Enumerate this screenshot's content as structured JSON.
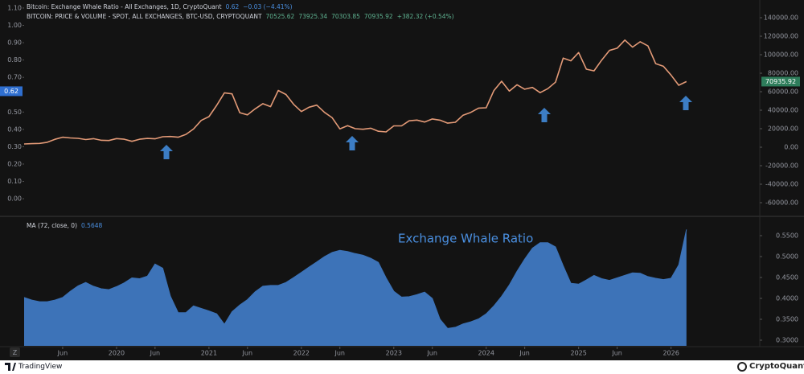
{
  "chart_data": [
    {
      "type": "line",
      "indicator": {
        "name": "Bitcoin: Exchange Whale Ratio - All Exchanges, 1D, CryptoQuant",
        "last": 0.62,
        "change": "−0.03 (−4.41%)"
      },
      "ohlc": {
        "open": 70525.62,
        "high": 73925.34,
        "low": 70303.85,
        "change": "+382.32 (+0.54%)"
      },
      "x": [
        "2019-01",
        "2019-02",
        "2019-03",
        "2019-04",
        "2019-05",
        "2019-06",
        "2019-07",
        "2019-08",
        "2019-09",
        "2019-10",
        "2019-11",
        "2019-12",
        "2020-01",
        "2020-02",
        "2020-03",
        "2020-04",
        "2020-05",
        "2020-06",
        "2020-07",
        "2020-08",
        "2020-09",
        "2020-10",
        "2020-11",
        "2020-12",
        "2021-01",
        "2021-02",
        "2021-03",
        "2021-04",
        "2021-05",
        "2021-06",
        "2021-07",
        "2021-08",
        "2021-09",
        "2021-10",
        "2021-11",
        "2021-12",
        "2022-01",
        "2022-02",
        "2022-03",
        "2022-04",
        "2022-05",
        "2022-06",
        "2022-07",
        "2022-08",
        "2022-09",
        "2022-10",
        "2022-11",
        "2022-12",
        "2023-01",
        "2023-02",
        "2023-03",
        "2023-04",
        "2023-05",
        "2023-06",
        "2023-07",
        "2023-08",
        "2023-09",
        "2023-10",
        "2023-11",
        "2023-12",
        "2024-01",
        "2024-02",
        "2024-03",
        "2024-04",
        "2024-05",
        "2024-06",
        "2024-07",
        "2024-08",
        "2024-09",
        "2024-10",
        "2024-11",
        "2024-12",
        "2025-01",
        "2025-02",
        "2025-03",
        "2025-04",
        "2025-05",
        "2025-06",
        "2025-07",
        "2025-08",
        "2025-09",
        "2025-10",
        "2025-11",
        "2025-12",
        "2026-01",
        "2026-02",
        "2026-03"
      ],
      "xlim": [
        "2019-01",
        "2026-12"
      ],
      "y_axis_side": "left",
      "ylim": [
        -0.097,
        1.123
      ],
      "yticks": [
        {
          "value": 1.1,
          "label": "1.10"
        },
        {
          "value": 1.0,
          "label": "1.00"
        },
        {
          "value": 0.9,
          "label": "0.90"
        },
        {
          "value": 0.8,
          "label": "0.80"
        },
        {
          "value": 0.7,
          "label": "0.70"
        },
        {
          "value": 0.5,
          "label": "0.50"
        },
        {
          "value": 0.4,
          "label": "0.40"
        },
        {
          "value": 0.3,
          "label": "0.30"
        },
        {
          "value": 0.2,
          "label": "0.20"
        },
        {
          "value": 0.1,
          "label": "0.10"
        },
        {
          "value": 0,
          "label": "0.00"
        }
      ],
      "y2lim": [
        -73900,
        154800
      ],
      "y2ticks": [
        {
          "value": 140000,
          "label": "140000.00"
        },
        {
          "value": 120000,
          "label": "120000.00"
        },
        {
          "value": 100000,
          "label": "100000.00"
        },
        {
          "value": 80000,
          "label": "80000.00"
        },
        {
          "value": 60000,
          "label": "60000.00"
        },
        {
          "value": 40000,
          "label": "40000.00"
        },
        {
          "value": 20000,
          "label": "20000.00"
        },
        {
          "value": 0,
          "label": "0.00"
        },
        {
          "value": -20000,
          "label": "-20000.00"
        },
        {
          "value": -40000,
          "label": "-40000.00"
        },
        {
          "value": -60000,
          "label": "-60000.00"
        }
      ],
      "series": [
        {
          "name": "BITCOIN: PRICE & VOLUME - SPOT, ALL EXCHANGES, BTC-USD, CRYPTOQUANT",
          "color": "#e39a77",
          "axis": "y2",
          "values": [
            3500,
            3800,
            4100,
            5300,
            8500,
            10800,
            10000,
            9600,
            8300,
            9200,
            7500,
            7200,
            9300,
            8600,
            6400,
            8600,
            9500,
            9100,
            11300,
            11600,
            10800,
            13800,
            19700,
            29000,
            33100,
            45200,
            58800,
            57700,
            37300,
            35000,
            41500,
            47100,
            43800,
            61300,
            57000,
            46300,
            38500,
            43200,
            45500,
            37700,
            31800,
            19800,
            23300,
            20000,
            19400,
            20500,
            17200,
            16500,
            23100,
            23100,
            28500,
            29300,
            27200,
            30500,
            29200,
            26000,
            27000,
            34600,
            37700,
            42300,
            42600,
            61200,
            71300,
            60600,
            67500,
            62700,
            64600,
            59000,
            63300,
            70300,
            96400,
            93400,
            102400,
            84400,
            82500,
            94200,
            104600,
            107100,
            115800,
            108200,
            114000,
            109500,
            90400,
            87500,
            78000,
            67000,
            70935.92
          ]
        }
      ]
    },
    {
      "type": "area",
      "annotation": "Exchange Whale Ratio",
      "x": [
        "2019-01",
        "2019-02",
        "2019-03",
        "2019-04",
        "2019-05",
        "2019-06",
        "2019-07",
        "2019-08",
        "2019-09",
        "2019-10",
        "2019-11",
        "2019-12",
        "2020-01",
        "2020-02",
        "2020-03",
        "2020-04",
        "2020-05",
        "2020-06",
        "2020-07",
        "2020-08",
        "2020-09",
        "2020-10",
        "2020-11",
        "2020-12",
        "2021-01",
        "2021-02",
        "2021-03",
        "2021-04",
        "2021-05",
        "2021-06",
        "2021-07",
        "2021-08",
        "2021-09",
        "2021-10",
        "2021-11",
        "2021-12",
        "2022-01",
        "2022-02",
        "2022-03",
        "2022-04",
        "2022-05",
        "2022-06",
        "2022-07",
        "2022-08",
        "2022-09",
        "2022-10",
        "2022-11",
        "2022-12",
        "2023-01",
        "2023-02",
        "2023-03",
        "2023-04",
        "2023-05",
        "2023-06",
        "2023-07",
        "2023-08",
        "2023-09",
        "2023-10",
        "2023-11",
        "2023-12",
        "2024-01",
        "2024-02",
        "2024-03",
        "2024-04",
        "2024-05",
        "2024-06",
        "2024-07",
        "2024-08",
        "2024-09",
        "2024-10",
        "2024-11",
        "2024-12",
        "2025-01",
        "2025-02",
        "2025-03",
        "2025-04",
        "2025-05",
        "2025-06",
        "2025-07",
        "2025-08",
        "2025-09",
        "2025-10",
        "2025-11",
        "2025-12",
        "2026-01",
        "2026-02",
        "2026-03"
      ],
      "xlim": [
        "2019-01",
        "2026-12"
      ],
      "xticks": [
        {
          "value": "2019-06",
          "label": "Jun"
        },
        {
          "value": "2020-01",
          "label": "2020"
        },
        {
          "value": "2020-06",
          "label": "Jun"
        },
        {
          "value": "2021-01",
          "label": "2021"
        },
        {
          "value": "2021-06",
          "label": "Jun"
        },
        {
          "value": "2022-01",
          "label": "2022"
        },
        {
          "value": "2022-06",
          "label": "Jun"
        },
        {
          "value": "2023-01",
          "label": "2023"
        },
        {
          "value": "2023-06",
          "label": "Jun"
        },
        {
          "value": "2024-01",
          "label": "2024"
        },
        {
          "value": "2024-06",
          "label": "Jun"
        },
        {
          "value": "2025-01",
          "label": "2025"
        },
        {
          "value": "2025-06",
          "label": "Jun"
        },
        {
          "value": "2026-01",
          "label": "2026"
        }
      ],
      "y_axis_side": "right",
      "ylim": [
        0.2865,
        0.5942
      ],
      "yticks": [
        {
          "value": 0.55,
          "label": "0.5500"
        },
        {
          "value": 0.5,
          "label": "0.5000"
        },
        {
          "value": 0.45,
          "label": "0.4500"
        },
        {
          "value": 0.4,
          "label": "0.4000"
        },
        {
          "value": 0.35,
          "label": "0.3500"
        },
        {
          "value": 0.3,
          "label": "0.3000"
        }
      ],
      "series": [
        {
          "name": "MA (72, close, 0)",
          "color": "#3d73b8",
          "values": [
            0.402,
            0.396,
            0.392,
            0.392,
            0.396,
            0.402,
            0.417,
            0.43,
            0.438,
            0.429,
            0.423,
            0.421,
            0.428,
            0.437,
            0.449,
            0.447,
            0.453,
            0.482,
            0.472,
            0.405,
            0.366,
            0.366,
            0.382,
            0.376,
            0.37,
            0.363,
            0.338,
            0.368,
            0.384,
            0.397,
            0.416,
            0.429,
            0.431,
            0.431,
            0.438,
            0.45,
            0.462,
            0.475,
            0.487,
            0.5,
            0.51,
            0.515,
            0.512,
            0.507,
            0.503,
            0.496,
            0.486,
            0.449,
            0.417,
            0.403,
            0.404,
            0.409,
            0.415,
            0.4,
            0.35,
            0.328,
            0.331,
            0.339,
            0.344,
            0.351,
            0.363,
            0.382,
            0.405,
            0.432,
            0.465,
            0.494,
            0.52,
            0.533,
            0.533,
            0.523,
            0.478,
            0.436,
            0.434,
            0.444,
            0.455,
            0.447,
            0.443,
            0.449,
            0.455,
            0.461,
            0.46,
            0.452,
            0.448,
            0.445,
            0.448,
            0.48,
            0.5648
          ]
        }
      ]
    }
  ],
  "corner_button": "Z",
  "footer": {
    "left": "TradingView",
    "right": "CryptoQuant"
  }
}
